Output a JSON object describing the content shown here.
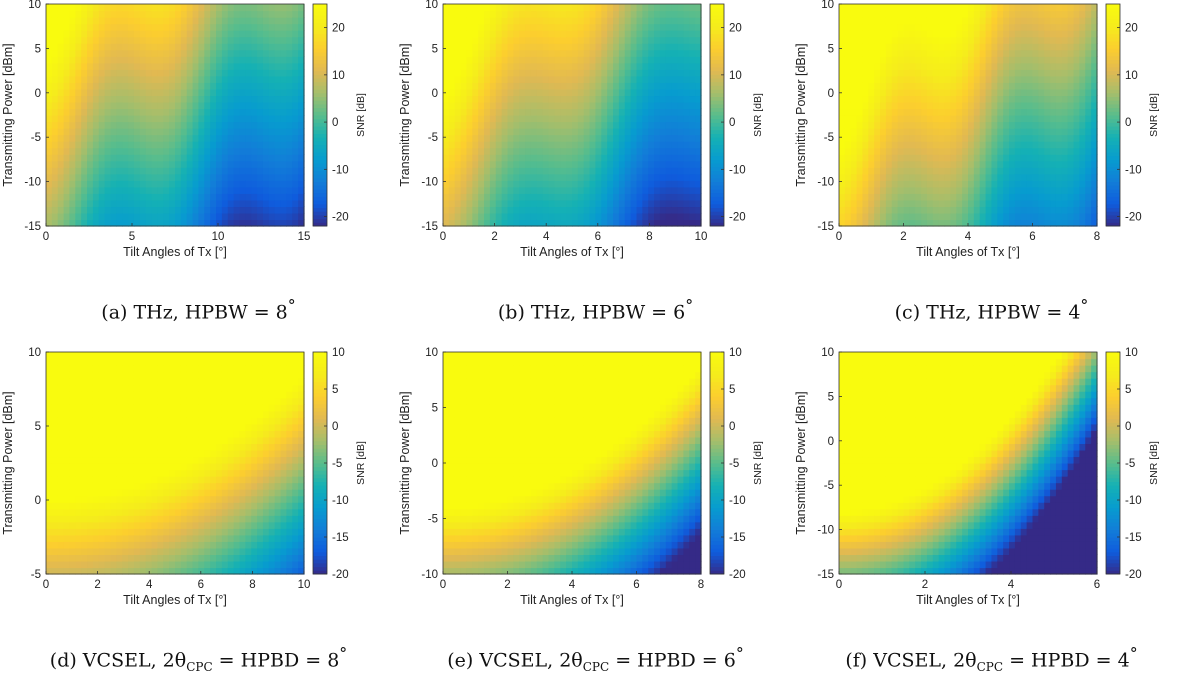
{
  "colormap": "parula",
  "chart_data": [
    {
      "type": "heatmap",
      "caption": "(a) THz, HPBW = 8°",
      "xlabel": "Tilt Angles of Tx [°]",
      "ylabel": "Transmitting Power [dBm]",
      "colorbar_label": "SNR [dB]",
      "xlim": [
        0,
        15
      ],
      "ylim": [
        -15,
        10
      ],
      "xticks": [
        0,
        5,
        10,
        15
      ],
      "yticks": [
        -15,
        -10,
        -5,
        0,
        5,
        10
      ],
      "clim": [
        -22,
        25
      ],
      "cticks": [
        -20,
        -10,
        0,
        10,
        20
      ],
      "model": "thz",
      "params": {
        "base": 18,
        "slope": 1.0,
        "k": 4.0,
        "hpbw": 8,
        "amp": 3.5
      }
    },
    {
      "type": "heatmap",
      "caption": "(b) THz, HPBW = 6°",
      "xlabel": "Tilt Angles of Tx [°]",
      "ylabel": "Transmitting Power [dBm]",
      "colorbar_label": "SNR [dB]",
      "xlim": [
        0,
        10
      ],
      "ylim": [
        -15,
        10
      ],
      "xticks": [
        0,
        2,
        4,
        6,
        8,
        10
      ],
      "yticks": [
        -15,
        -10,
        -5,
        0,
        5,
        10
      ],
      "clim": [
        -22,
        25
      ],
      "cticks": [
        -20,
        -10,
        0,
        10,
        20
      ],
      "model": "thz",
      "params": {
        "base": 22,
        "slope": 1.0,
        "k": 4.6,
        "hpbw": 6,
        "amp": 3.5
      }
    },
    {
      "type": "heatmap",
      "caption": "(c) THz, HPBW = 4°",
      "xlabel": "Tilt Angles of Tx [°]",
      "ylabel": "Transmitting Power [dBm]",
      "colorbar_label": "SNR [dB]",
      "xlim": [
        0,
        8
      ],
      "ylim": [
        -15,
        10
      ],
      "xticks": [
        0,
        2,
        4,
        6,
        8
      ],
      "yticks": [
        -15,
        -10,
        -5,
        0,
        5,
        10
      ],
      "clim": [
        -22,
        25
      ],
      "cticks": [
        -20,
        -10,
        0,
        10,
        20
      ],
      "model": "thz",
      "params": {
        "base": 28,
        "slope": 1.0,
        "k": 4.5,
        "hpbw": 4,
        "amp": 3.5
      }
    },
    {
      "type": "heatmap",
      "caption": "(d) VCSEL, 2θ_CPC = HPBD = 8°",
      "xlabel": "Tilt Angles of Tx [°]",
      "ylabel": "Transmitting Power [dBm]",
      "colorbar_label": "SNR [dB]",
      "xlim": [
        0,
        10
      ],
      "ylim": [
        -5,
        10
      ],
      "xticks": [
        0,
        2,
        4,
        6,
        8,
        10
      ],
      "yticks": [
        -5,
        0,
        5,
        10
      ],
      "clim": [
        -20,
        10
      ],
      "cticks": [
        -20,
        -15,
        -10,
        -5,
        0,
        5,
        10
      ],
      "model": "vcsel",
      "params": {
        "base": 10,
        "slope": 2.0,
        "hpbd": 8
      }
    },
    {
      "type": "heatmap",
      "caption": "(e) VCSEL, 2θ_CPC = HPBD = 6°",
      "xlabel": "Tilt Angles of Tx [°]",
      "ylabel": "Transmitting Power [dBm]",
      "colorbar_label": "SNR [dB]",
      "xlim": [
        0,
        8
      ],
      "ylim": [
        -10,
        10
      ],
      "xticks": [
        0,
        2,
        4,
        6,
        8
      ],
      "yticks": [
        -10,
        -5,
        0,
        5,
        10
      ],
      "clim": [
        -20,
        10
      ],
      "cticks": [
        -20,
        -15,
        -10,
        -5,
        0,
        5,
        10
      ],
      "model": "vcsel",
      "params": {
        "base": 18,
        "slope": 2.0,
        "hpbd": 6
      }
    },
    {
      "type": "heatmap",
      "caption": "(f) VCSEL, 2θ_CPC = HPBD = 4°",
      "xlabel": "Tilt Angles of Tx [°]",
      "ylabel": "Transmitting Power [dBm]",
      "colorbar_label": "SNR [dB]",
      "xlim": [
        0,
        6
      ],
      "ylim": [
        -15,
        10
      ],
      "xticks": [
        0,
        2,
        4,
        6
      ],
      "yticks": [
        -15,
        -10,
        -5,
        0,
        5,
        10
      ],
      "clim": [
        -20,
        10
      ],
      "cticks": [
        -20,
        -15,
        -10,
        -5,
        0,
        5,
        10
      ],
      "model": "vcsel",
      "params": {
        "base": 26,
        "slope": 2.0,
        "hpbd": 4
      }
    }
  ],
  "captions": [
    {
      "prefix": "(a)  THz, HPBW = ",
      "value": "8",
      "unit": "°"
    },
    {
      "prefix": "(b)  THz, HPBW = ",
      "value": "6",
      "unit": "°"
    },
    {
      "prefix": "(c)  THz, HPBW = ",
      "value": "4",
      "unit": "°"
    },
    {
      "prefix": "(d)  VCSEL, 2θ",
      "sub": "CPC",
      "mid": " = HPBD = ",
      "value": "8",
      "unit": "°"
    },
    {
      "prefix": "(e)  VCSEL, 2θ",
      "sub": "CPC",
      "mid": " = HPBD = ",
      "value": "6",
      "unit": "°"
    },
    {
      "prefix": "(f)  VCSEL, 2θ",
      "sub": "CPC",
      "mid": " = HPBD = ",
      "value": "4",
      "unit": "°"
    }
  ]
}
